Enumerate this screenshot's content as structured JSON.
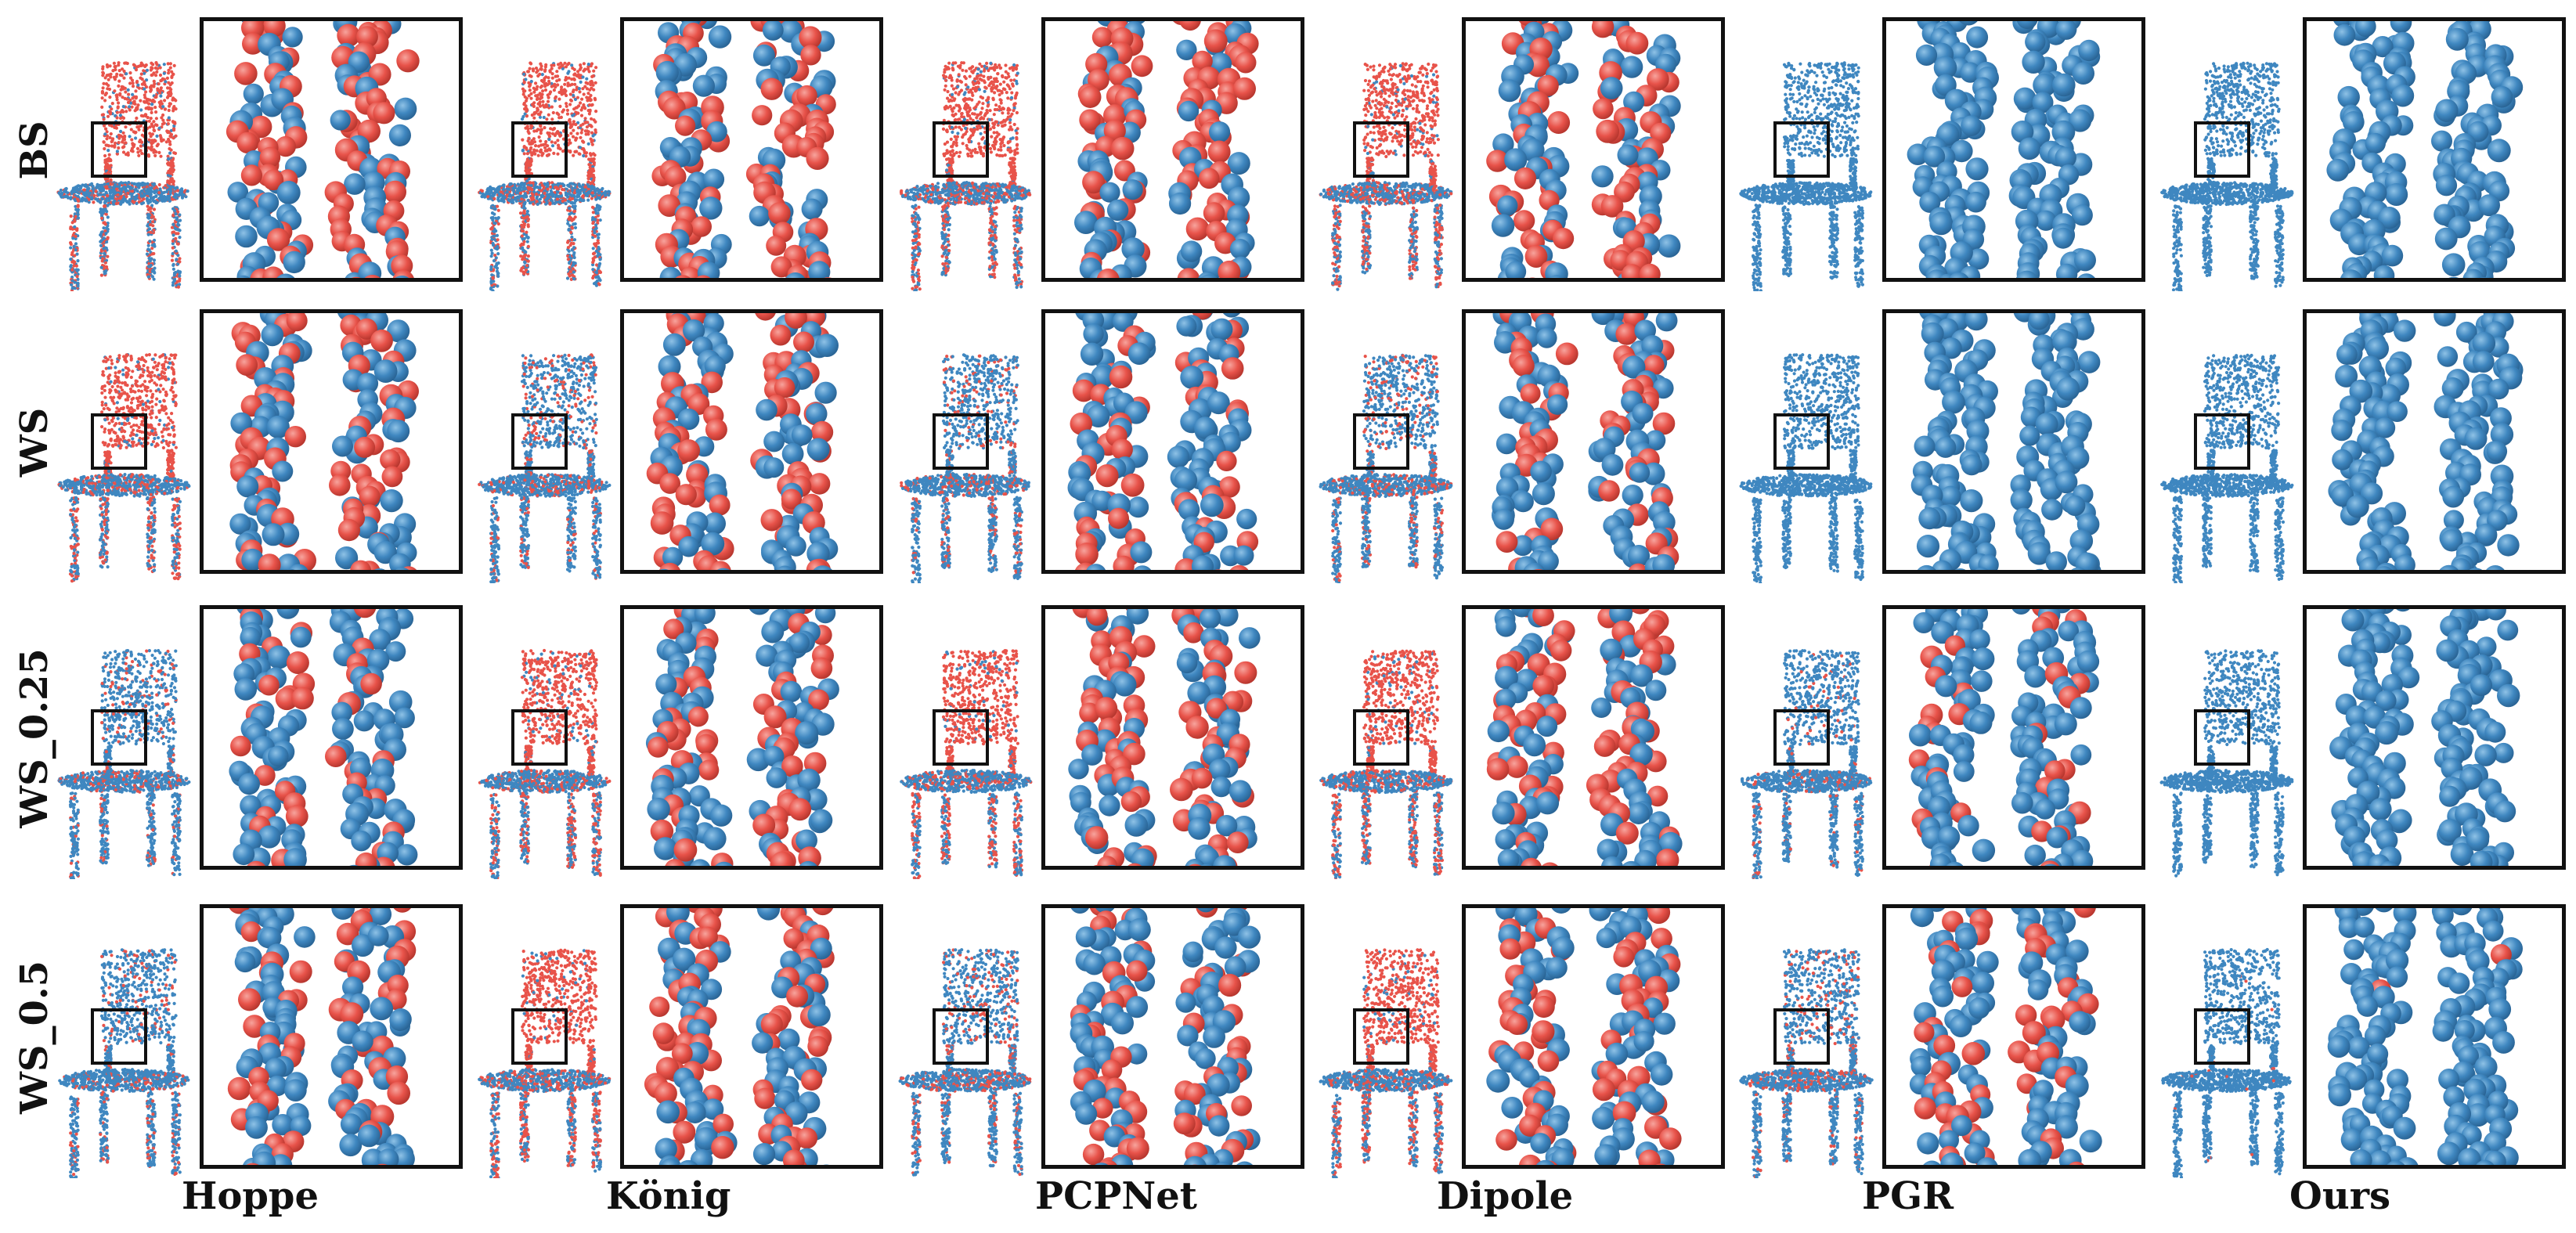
{
  "row_labels": [
    "BS",
    "WS",
    "WS_0.25",
    "WS_0.5"
  ],
  "column_labels": [
    "Hoppe",
    "König",
    "PCPNet",
    "Dipole",
    "PGR",
    "Ours"
  ],
  "colors": {
    "correct_point": "#3f87c0",
    "flipped_point": "#e8534a",
    "frame": "#111111",
    "background": "#ffffff"
  },
  "content": {
    "description": "Grid of chair point clouds with zoom-in crops; points colored blue (consistent normal orientation) or red (flipped).",
    "flipped_fraction": [
      [
        0.48,
        0.52,
        0.5,
        0.48,
        0.0,
        0.0
      ],
      [
        0.45,
        0.38,
        0.35,
        0.4,
        0.0,
        0.0
      ],
      [
        0.3,
        0.42,
        0.45,
        0.45,
        0.2,
        0.0
      ],
      [
        0.3,
        0.5,
        0.4,
        0.45,
        0.35,
        0.02
      ]
    ]
  }
}
